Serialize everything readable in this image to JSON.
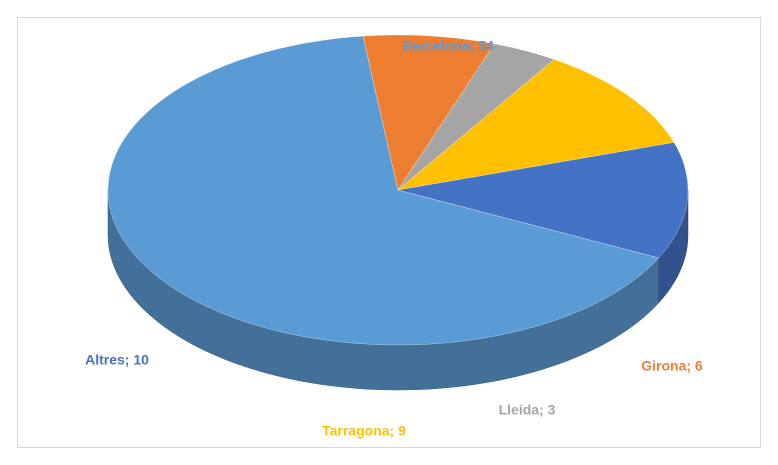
{
  "chart_data": {
    "type": "pie",
    "values": [
      54,
      6,
      3,
      9,
      10
    ],
    "value_labels": [
      "Barcelona;  54",
      "Girona;  6",
      "Lleida; 3",
      "Tarragona;  9",
      "Altres; 10"
    ],
    "colors": [
      "#5b9bd5",
      "#ed7d31",
      "#a5a5a5",
      "#ffc000",
      "#4472c4"
    ]
  }
}
